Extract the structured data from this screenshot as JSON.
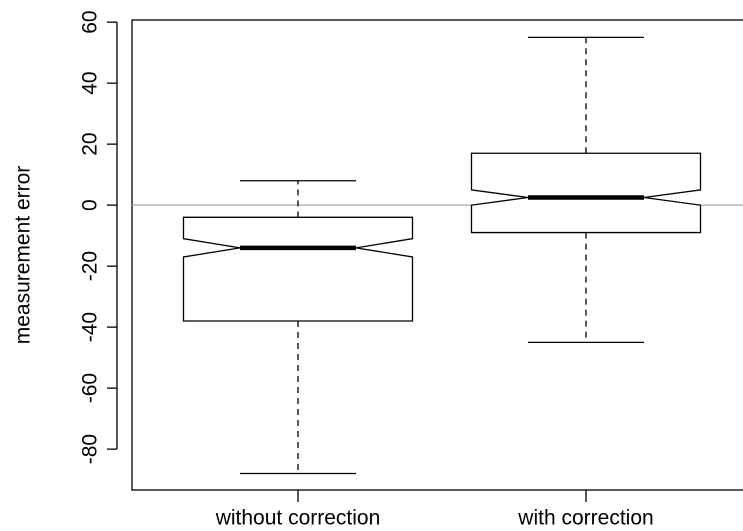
{
  "chart_data": {
    "type": "boxplot",
    "ylabel": "measurement error",
    "categories": [
      "without correction",
      "with correction"
    ],
    "whisker_low": [
      -88,
      -45
    ],
    "q1": [
      -38,
      -9
    ],
    "median": [
      -14,
      2.5
    ],
    "q3": [
      -4,
      17
    ],
    "whisker_high": [
      8,
      55
    ],
    "notch_low": [
      -17,
      0
    ],
    "notch_high": [
      -11,
      5
    ],
    "ylim": [
      -93.4,
      60.7
    ],
    "yticks": [
      -80,
      -60,
      -40,
      -20,
      0,
      20,
      40,
      60
    ],
    "hline": 0,
    "hline_color": "#aaaaaa",
    "box_color": "#ffffff",
    "notch": true
  }
}
